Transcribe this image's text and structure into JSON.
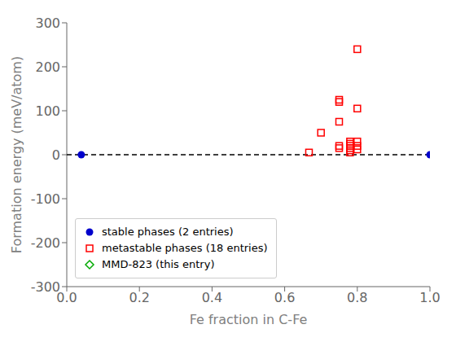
{
  "chart_data": {
    "type": "scatter",
    "xlabel": "Fe fraction in C-Fe",
    "ylabel": "Formation energy (meV/atom)",
    "xlim": [
      0.0,
      1.0
    ],
    "ylim": [
      -300,
      300
    ],
    "xticks": [
      {
        "value": 0.0,
        "label": "0.0"
      },
      0.2,
      0.4,
      0.6,
      0.8,
      {
        "value": 1.0,
        "label": "1.0"
      }
    ],
    "yticks": [
      -300,
      -200,
      -100,
      0,
      100,
      200,
      300
    ],
    "grid": false,
    "legend": "lower left",
    "series": [
      {
        "type": "line",
        "line_style": "dashed",
        "color": "#000000",
        "x": [
          0.0,
          1.0
        ],
        "values": [
          0.0,
          0.0
        ]
      },
      {
        "name": "stable phases (2 entries)",
        "color": "#0000cc",
        "marker": "circle",
        "x": [
          0.04,
          1.0
        ],
        "values": [
          0.0,
          0.0
        ]
      },
      {
        "name": "metastable phases (18 entries)",
        "color": "#ff0000",
        "marker": "square",
        "x": [
          0.667,
          0.7,
          0.75,
          0.75,
          0.75,
          0.75,
          0.75,
          0.78,
          0.78,
          0.78,
          0.78,
          0.78,
          0.78,
          0.8,
          0.8,
          0.8,
          0.8,
          0.8
        ],
        "values": [
          5.0,
          50.0,
          120.0,
          125.0,
          75.0,
          20.0,
          15.0,
          30.0,
          25.0,
          20.0,
          15.0,
          10.0,
          5.0,
          240.0,
          105.0,
          30.0,
          20.0,
          12.0
        ]
      },
      {
        "name": "MMD-823 (this entry)",
        "color": "#00aa00",
        "marker": "diamond",
        "x": [],
        "values": []
      }
    ]
  }
}
